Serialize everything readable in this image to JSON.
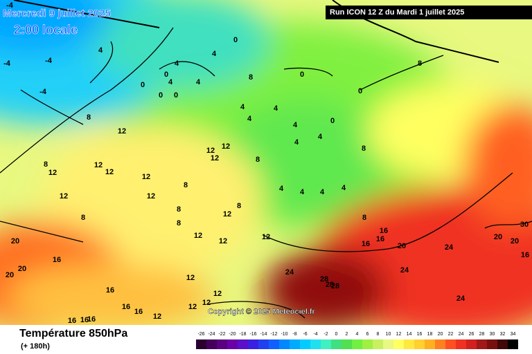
{
  "header": {
    "date": "Mercredi 9 juillet 2025",
    "time": "2:00 locale",
    "run": "Run ICON 12 Z du Mardi 1 juillet 2025"
  },
  "copyright": "Copyright © 2025 Meteociel.fr",
  "footer": {
    "title": "Température 850hPa",
    "lead": "(+ 180h)"
  },
  "legend": {
    "values": [
      -26,
      -24,
      -22,
      -20,
      -18,
      -16,
      -14,
      -12,
      -10,
      -8,
      -6,
      -4,
      -2,
      0,
      2,
      4,
      6,
      8,
      10,
      12,
      14,
      16,
      18,
      20,
      22,
      24,
      26,
      28,
      30,
      32,
      34
    ],
    "colors": [
      "#2a0030",
      "#44005a",
      "#5a0080",
      "#6a00a8",
      "#5a10c8",
      "#3a20e0",
      "#2040f0",
      "#1060ff",
      "#0088ff",
      "#00aaff",
      "#00ccff",
      "#20e0f0",
      "#40f0c0",
      "#40e080",
      "#50e050",
      "#70f040",
      "#a0f040",
      "#c8f060",
      "#e8f880",
      "#ffff60",
      "#ffe840",
      "#ffd030",
      "#ffb020",
      "#ff8020",
      "#ff5020",
      "#f03020",
      "#d02020",
      "#a01818",
      "#781010",
      "#400808",
      "#000000"
    ]
  },
  "contour_labels": [
    -4,
    -4,
    -4,
    -4,
    4,
    4,
    0,
    0,
    4,
    0,
    0,
    4,
    0,
    4,
    8,
    12,
    8,
    12,
    12,
    12,
    12,
    12,
    12,
    8,
    8,
    8,
    8,
    12,
    12,
    12,
    8,
    12,
    12,
    12,
    8,
    4,
    8,
    4,
    4,
    4,
    4,
    4,
    0,
    4,
    4,
    4,
    4,
    0,
    0,
    8,
    8,
    8,
    16,
    16,
    16,
    20,
    24,
    20,
    20,
    30,
    16,
    24,
    24,
    28,
    28,
    28,
    24,
    20,
    20,
    20,
    16,
    16,
    16,
    16,
    16,
    16,
    16,
    12,
    12,
    12,
    12,
    12,
    12
  ]
}
